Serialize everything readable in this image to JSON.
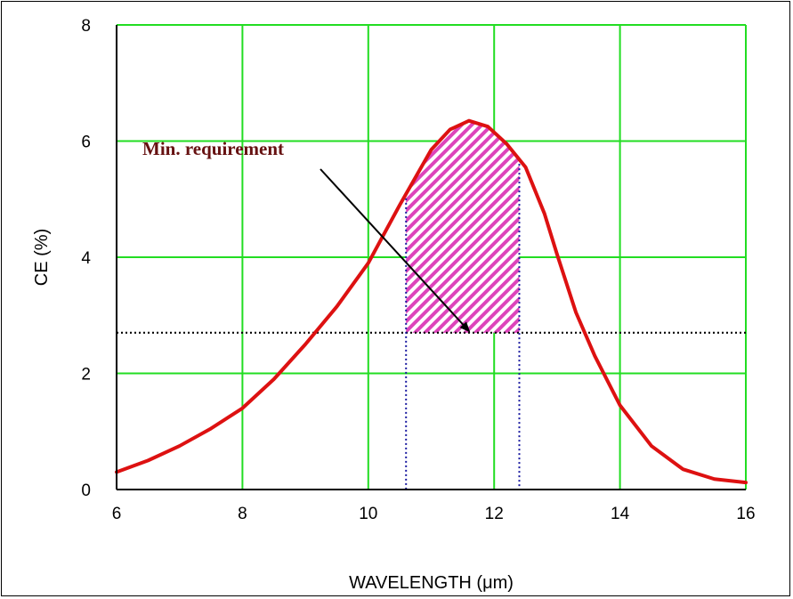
{
  "chart_data": {
    "type": "line",
    "xlabel": "WAVELENGTH (μm)",
    "ylabel": "CE (%)",
    "xlim": [
      6,
      16
    ],
    "ylim": [
      0,
      8
    ],
    "xticks": [
      6,
      8,
      10,
      12,
      14,
      16
    ],
    "yticks": [
      0,
      2,
      4,
      6,
      8
    ],
    "xtick_labels": [
      "6",
      "8",
      "10",
      "12",
      "14",
      "16"
    ],
    "ytick_labels": [
      "0",
      "2",
      "4",
      "6",
      "8"
    ],
    "grid": true,
    "series": [
      {
        "x": [
          6.0,
          6.5,
          7.0,
          7.5,
          8.0,
          8.5,
          9.0,
          9.5,
          10.0,
          10.5,
          11.0,
          11.3,
          11.6,
          11.9,
          12.2,
          12.5,
          12.8,
          13.0,
          13.3,
          13.6,
          14.0,
          14.5,
          15.0,
          15.5,
          16.0
        ],
        "y": [
          0.3,
          0.5,
          0.75,
          1.05,
          1.4,
          1.9,
          2.5,
          3.15,
          3.9,
          4.9,
          5.85,
          6.2,
          6.35,
          6.25,
          5.95,
          5.55,
          4.75,
          4.05,
          3.05,
          2.3,
          1.45,
          0.75,
          0.35,
          0.18,
          0.12
        ],
        "color": "#dd1111"
      }
    ],
    "min_requirement": {
      "label": "Min. requirement",
      "level": 2.7,
      "band": [
        10.6,
        12.4
      ]
    },
    "colors": {
      "grid": "#22dd22",
      "curve": "#dd1111",
      "hatch": "#dd44bb",
      "guide_h": "#000000",
      "guide_v": "#1a1aa0",
      "annotation": "#661111"
    }
  }
}
